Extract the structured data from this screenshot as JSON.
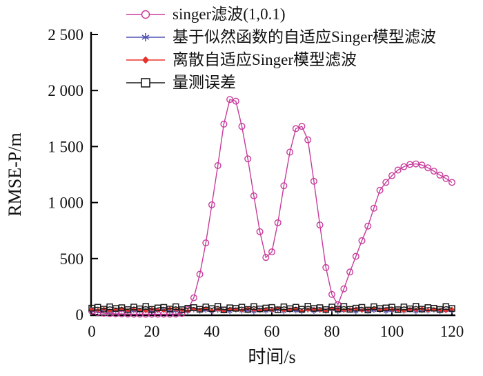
{
  "chart_data": {
    "type": "line",
    "x": [
      0,
      2,
      4,
      6,
      8,
      10,
      12,
      14,
      16,
      18,
      20,
      22,
      24,
      26,
      28,
      30,
      32,
      34,
      36,
      38,
      40,
      42,
      44,
      46,
      48,
      50,
      52,
      54,
      56,
      58,
      60,
      62,
      64,
      66,
      68,
      70,
      72,
      74,
      76,
      78,
      80,
      82,
      84,
      86,
      88,
      90,
      92,
      94,
      96,
      98,
      100,
      102,
      104,
      106,
      108,
      110,
      112,
      114,
      116,
      118,
      120
    ],
    "series": [
      {
        "name": "singer滤波(1,0.1)",
        "color": "#c73b9b",
        "marker": "circle-open",
        "values": [
          30,
          18,
          12,
          9,
          7,
          6,
          5,
          4,
          4,
          3,
          3,
          3,
          4,
          4,
          5,
          10,
          45,
          150,
          360,
          640,
          980,
          1330,
          1700,
          1920,
          1905,
          1680,
          1390,
          1060,
          740,
          510,
          560,
          820,
          1150,
          1450,
          1660,
          1680,
          1560,
          1190,
          800,
          420,
          180,
          90,
          230,
          380,
          520,
          660,
          790,
          950,
          1110,
          1180,
          1240,
          1290,
          1320,
          1340,
          1345,
          1335,
          1310,
          1280,
          1245,
          1215,
          1180
        ]
      },
      {
        "name": "基于似然函数的自适应Singer模型滤波",
        "color": "#4f51b3",
        "marker": "asterisk",
        "values": [
          38,
          31,
          40,
          27,
          35,
          42,
          29,
          36,
          33,
          41,
          26,
          37,
          44,
          30,
          34,
          39,
          28,
          43,
          32,
          38,
          25,
          40,
          35,
          29,
          42,
          33,
          37,
          26,
          41,
          31,
          36,
          44,
          28,
          39,
          34,
          27,
          42,
          30,
          38,
          33,
          45,
          29,
          36,
          41,
          26,
          40,
          32,
          37,
          43,
          28,
          35,
          39,
          31,
          44,
          27,
          38,
          33,
          41,
          30,
          36,
          34
        ]
      },
      {
        "name": "离散自适应Singer模型滤波",
        "color": "#e8312a",
        "marker": "diamond-filled",
        "values": [
          46,
          39,
          50,
          35,
          44,
          52,
          38,
          47,
          42,
          33,
          49,
          41,
          36,
          53,
          45,
          40,
          34,
          48,
          43,
          51,
          37,
          46,
          32,
          50,
          44,
          39,
          53,
          42,
          36,
          47,
          41,
          55,
          38,
          45,
          50,
          35,
          43,
          48,
          40,
          33,
          52,
          46,
          39,
          44,
          51,
          37,
          42,
          54,
          36,
          49,
          45,
          40,
          34,
          47,
          43,
          52,
          38,
          46,
          41,
          35,
          48
        ]
      },
      {
        "name": "量测误差",
        "color": "#1a1a1a",
        "marker": "square-open",
        "values": [
          58,
          66,
          49,
          70,
          55,
          62,
          45,
          68,
          52,
          73,
          47,
          60,
          65,
          50,
          71,
          44,
          57,
          63,
          48,
          69,
          54,
          74,
          42,
          61,
          56,
          67,
          46,
          72,
          51,
          59,
          64,
          43,
          70,
          53,
          66,
          48,
          75,
          55,
          62,
          45,
          68,
          50,
          73,
          47,
          58,
          65,
          41,
          71,
          54,
          60,
          67,
          44,
          69,
          52,
          74,
          49,
          63,
          57,
          46,
          72,
          55
        ]
      }
    ],
    "axes": {
      "x": {
        "label": "时间/s",
        "min": 0,
        "max": 120,
        "ticks": [
          0,
          20,
          40,
          60,
          80,
          100,
          120
        ],
        "tick_labels": [
          "0",
          "20",
          "40",
          "60",
          "80",
          "100",
          "120"
        ]
      },
      "y": {
        "label": "RMSE-P/m",
        "min": 0,
        "max": 2500,
        "ticks": [
          0,
          500,
          1000,
          1500,
          2000,
          2500
        ],
        "tick_labels": [
          "0",
          "500",
          "1 000",
          "1 500",
          "2 000",
          "2 500"
        ]
      }
    },
    "grid": false,
    "legend_position": "top-left-inside",
    "axis_color": "#000000",
    "background": "#ffffff"
  }
}
